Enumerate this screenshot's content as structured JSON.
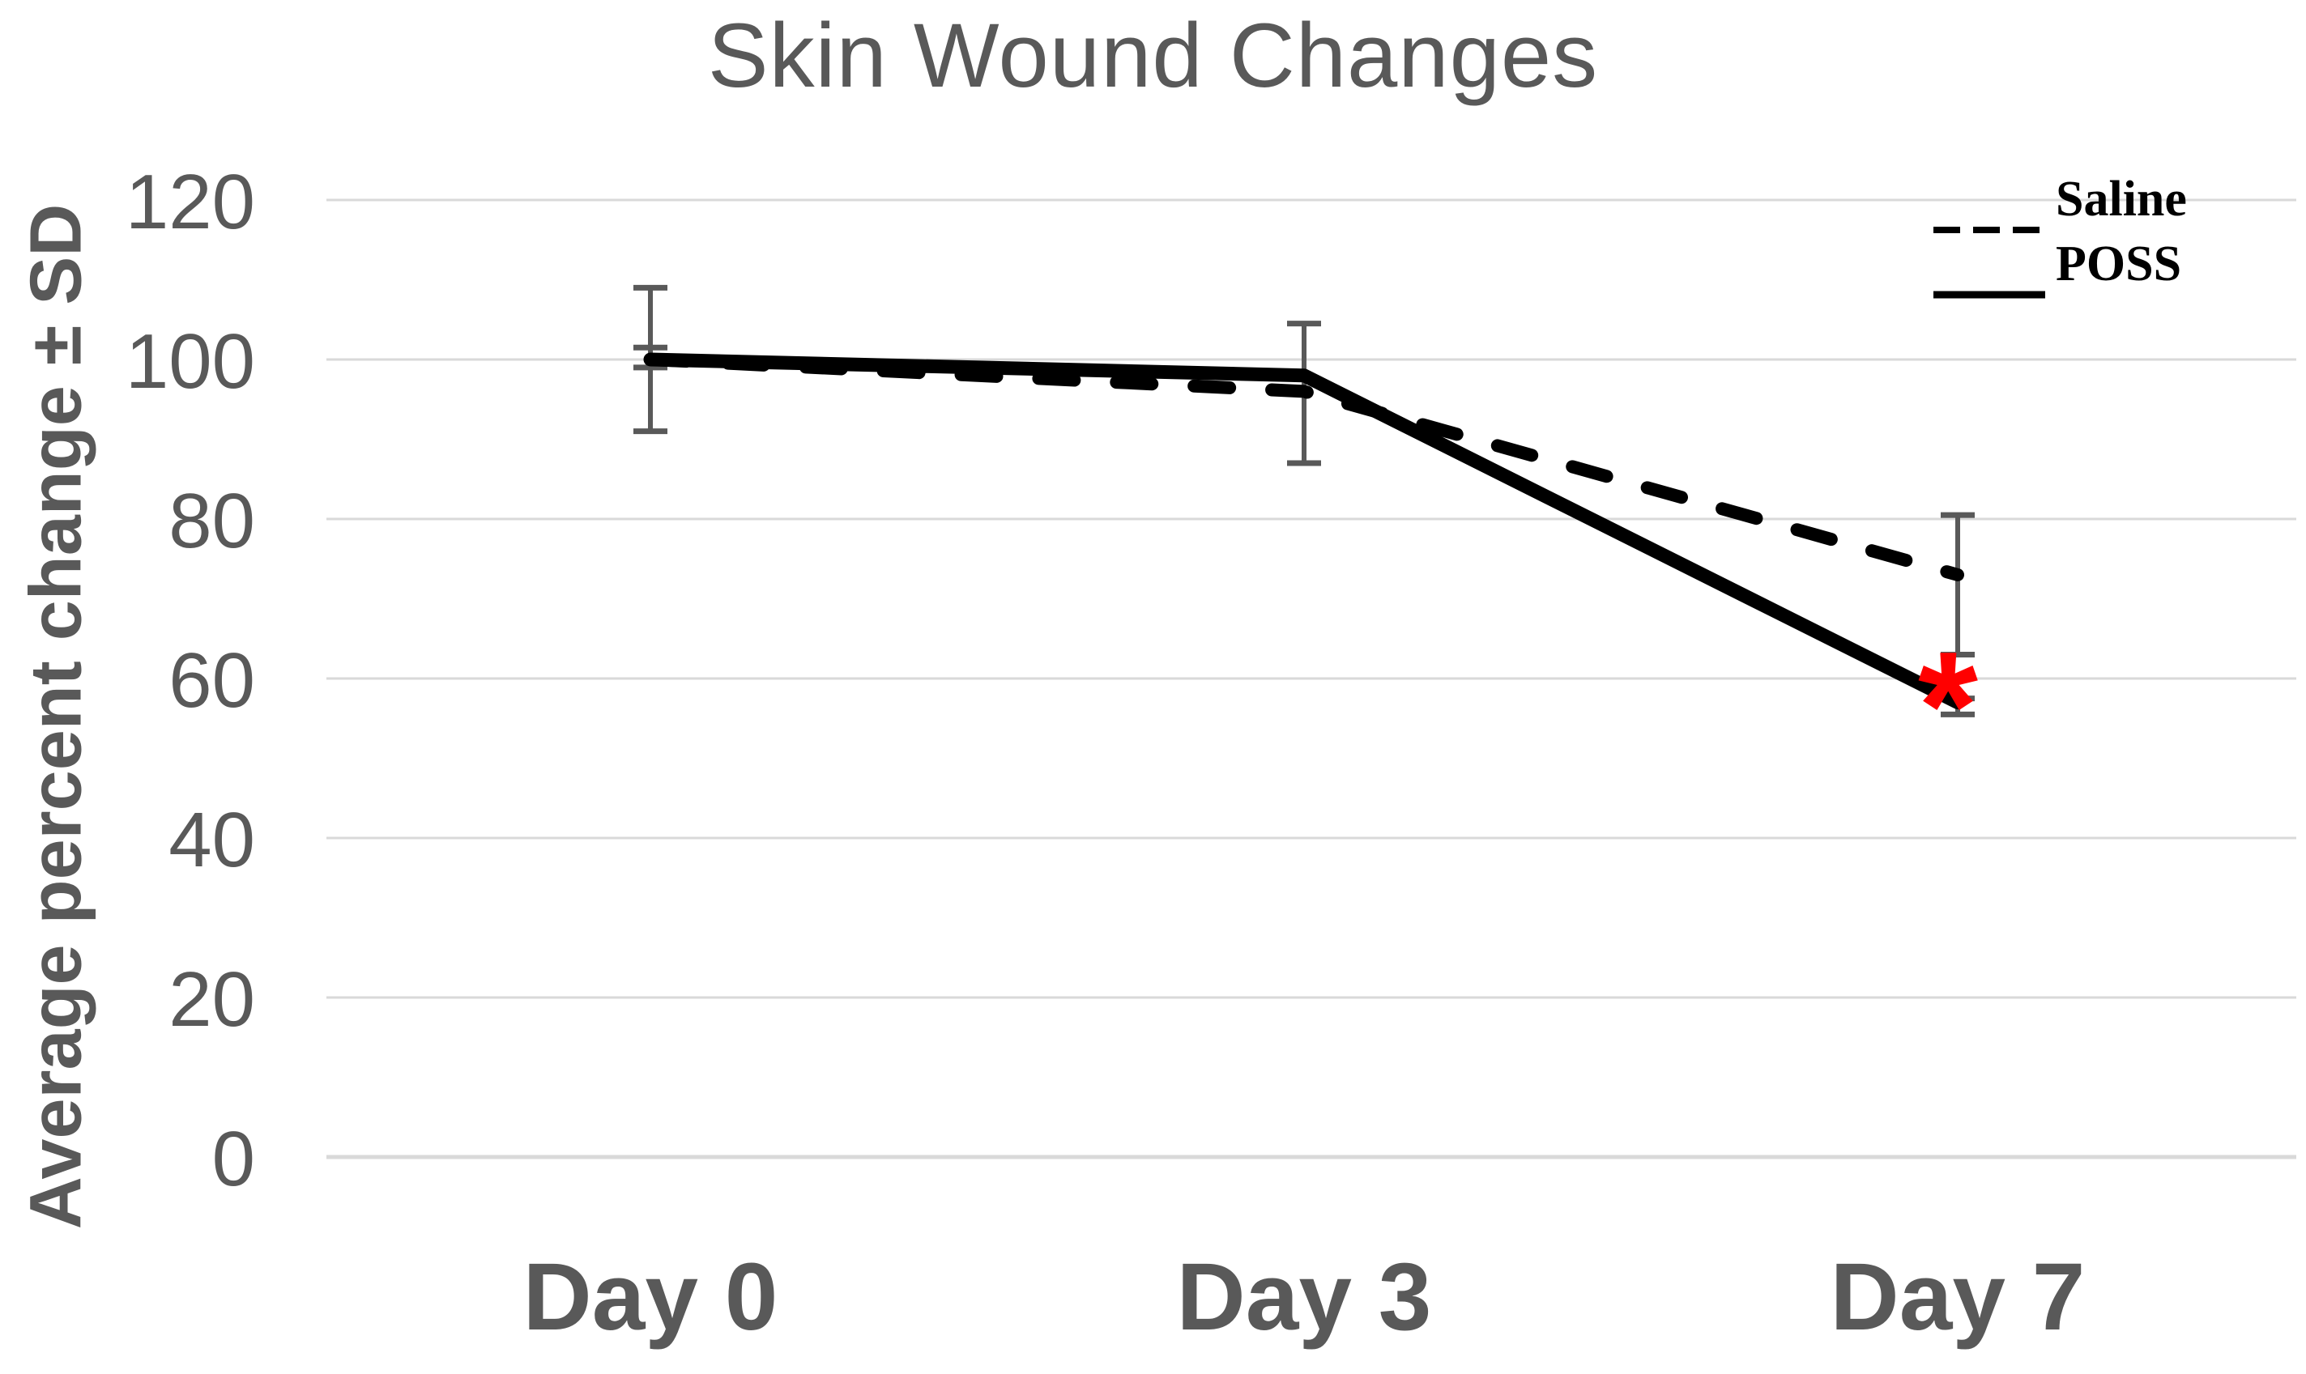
{
  "chart_data": {
    "type": "line",
    "title": "Skin Wound Changes",
    "ylabel": "Average percent change ± SD",
    "categories": [
      "Day 0",
      "Day 3",
      "Day 7"
    ],
    "series": [
      {
        "name": "Saline",
        "line_style": "dashed",
        "color": "#000000",
        "values": [
          100,
          96,
          73
        ]
      },
      {
        "name": "POSS",
        "line_style": "solid",
        "color": "#000000",
        "values": [
          100,
          98,
          57
        ]
      }
    ],
    "error_bars": [
      {
        "category": "Day 0",
        "upper": 109,
        "lower": 91
      },
      {
        "category": "Day 0",
        "upper": 101.5,
        "lower": 99
      },
      {
        "category": "Day 3",
        "upper": 104.5,
        "lower": 87
      },
      {
        "category": "Day 7",
        "upper": 80.5,
        "lower": 63
      },
      {
        "category": "Day 7",
        "upper": 57.5,
        "lower": 55.5
      }
    ],
    "yticks": [
      0,
      20,
      40,
      60,
      80,
      100,
      120
    ],
    "ylim": [
      0,
      120
    ],
    "grid": "horizontal",
    "legend_position": "top-right",
    "annotations": [
      {
        "text": "*",
        "category": "Day 7",
        "y": 60,
        "color": "#FF0000",
        "meaning": "statistically significant"
      }
    ]
  },
  "style": {
    "background": "#FFFFFF",
    "text_color": "#595959",
    "grid_color": "#D9D9D9",
    "error_bar_color": "#595959",
    "line_color": "#000000",
    "annotation_color": "#FF0000"
  }
}
